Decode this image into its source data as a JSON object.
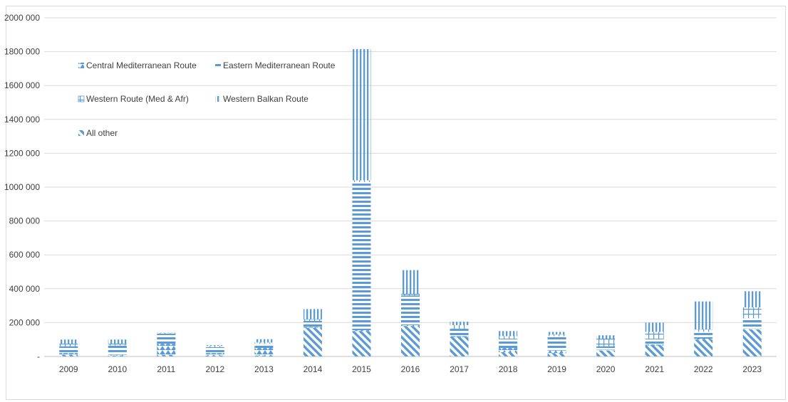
{
  "chart_data": {
    "type": "bar",
    "stacked": true,
    "title": "",
    "xlabel": "",
    "ylabel": "",
    "ylim": [
      0,
      2000000
    ],
    "y_ticks": [
      {
        "value": 0,
        "label": "-"
      },
      {
        "value": 200000,
        "label": "200 000"
      },
      {
        "value": 400000,
        "label": "400 000"
      },
      {
        "value": 600000,
        "label": "600 000"
      },
      {
        "value": 800000,
        "label": "800 000"
      },
      {
        "value": 1000000,
        "label": "1000 000"
      },
      {
        "value": 1200000,
        "label": "1200 000"
      },
      {
        "value": 1400000,
        "label": "1400 000"
      },
      {
        "value": 1600000,
        "label": "1600 000"
      },
      {
        "value": 1800000,
        "label": "1800 000"
      },
      {
        "value": 2000000,
        "label": "2000 000"
      }
    ],
    "grid": true,
    "legend_position": "top-left",
    "categories": [
      "2009",
      "2010",
      "2011",
      "2012",
      "2013",
      "2014",
      "2015",
      "2016",
      "2017",
      "2018",
      "2019",
      "2020",
      "2021",
      "2022",
      "2023"
    ],
    "series": [
      {
        "name": "All other",
        "pattern": "diagonal",
        "values": [
          10000,
          5000,
          10000,
          5000,
          5000,
          170000,
          150000,
          180000,
          115000,
          25000,
          20000,
          35000,
          65000,
          100000,
          160000
        ]
      },
      {
        "name": "Central Mediterranean Route",
        "pattern": "wedge",
        "values": [
          10000,
          5000,
          65000,
          15000,
          45000,
          5000,
          5000,
          5000,
          5000,
          25000,
          15000,
          5000,
          5000,
          5000,
          5000
        ]
      },
      {
        "name": "Eastern Mediterranean Route",
        "pattern": "horizontal",
        "values": [
          40000,
          55000,
          55000,
          35000,
          25000,
          35000,
          875000,
          175000,
          40000,
          55000,
          85000,
          20000,
          35000,
          40000,
          60000
        ]
      },
      {
        "name": "Western Route (Med & Afr)",
        "pattern": "grid",
        "values": [
          15000,
          10000,
          8000,
          7000,
          7000,
          10000,
          10000,
          10000,
          25000,
          15000,
          10000,
          45000,
          40000,
          15000,
          65000
        ]
      },
      {
        "name": "Western Balkan Route",
        "pattern": "vertical",
        "values": [
          25000,
          25000,
          2000,
          5000,
          20000,
          60000,
          775000,
          140000,
          20000,
          30000,
          15000,
          20000,
          55000,
          165000,
          95000
        ]
      }
    ],
    "legend_order": [
      "Central Mediterranean Route",
      "Eastern Mediterranean Route",
      "Western Route (Med & Afr)",
      "Western Balkan Route",
      "All other"
    ],
    "colors": {
      "bar": "#5b9bd5",
      "grid": "#d9d9d9",
      "axis": "#bfbfbf",
      "text": "#404040"
    }
  }
}
